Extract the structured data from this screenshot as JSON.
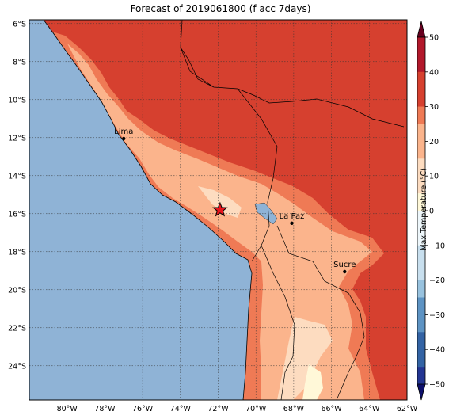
{
  "title": "Forecast of 2019061800 (f acc 7days)",
  "map": {
    "lon_range": [
      -82,
      -62
    ],
    "lat_range": [
      -25.8,
      -5.8
    ],
    "lon_ticks": [
      "80°W",
      "78°W",
      "76°W",
      "74°W",
      "72°W",
      "70°W",
      "68°W",
      "66°W",
      "64°W",
      "62°W"
    ],
    "lat_ticks": [
      "6°S",
      "8°S",
      "10°S",
      "12°S",
      "14°S",
      "16°S",
      "18°S",
      "20°S",
      "22°S",
      "24°S"
    ],
    "ocean_color": "#8fb3d6",
    "grid": true
  },
  "cities": [
    {
      "name": "Lima",
      "lon": -77.0,
      "lat": -12.05
    },
    {
      "name": "La Paz",
      "lon": -68.1,
      "lat": -16.5
    },
    {
      "name": "Sucre",
      "lon": -65.3,
      "lat": -19.05
    }
  ],
  "marker": {
    "type": "red-star",
    "lon": -71.9,
    "lat": -15.8
  },
  "colorbar": {
    "label": "Max Temperature (°C)",
    "ticks": [
      "50",
      "40",
      "30",
      "20",
      "10",
      "0",
      "−10",
      "−20",
      "−30",
      "−40",
      "−50"
    ],
    "colors": [
      "#67001f",
      "#b2182b",
      "#d6402f",
      "#ef7a55",
      "#fbb48c",
      "#fddcc0",
      "#fff8d8",
      "#eef7fb",
      "#c8dfee",
      "#98c2de",
      "#5d93c3",
      "#3363a4",
      "#233592",
      "#0d0f6b"
    ]
  }
}
